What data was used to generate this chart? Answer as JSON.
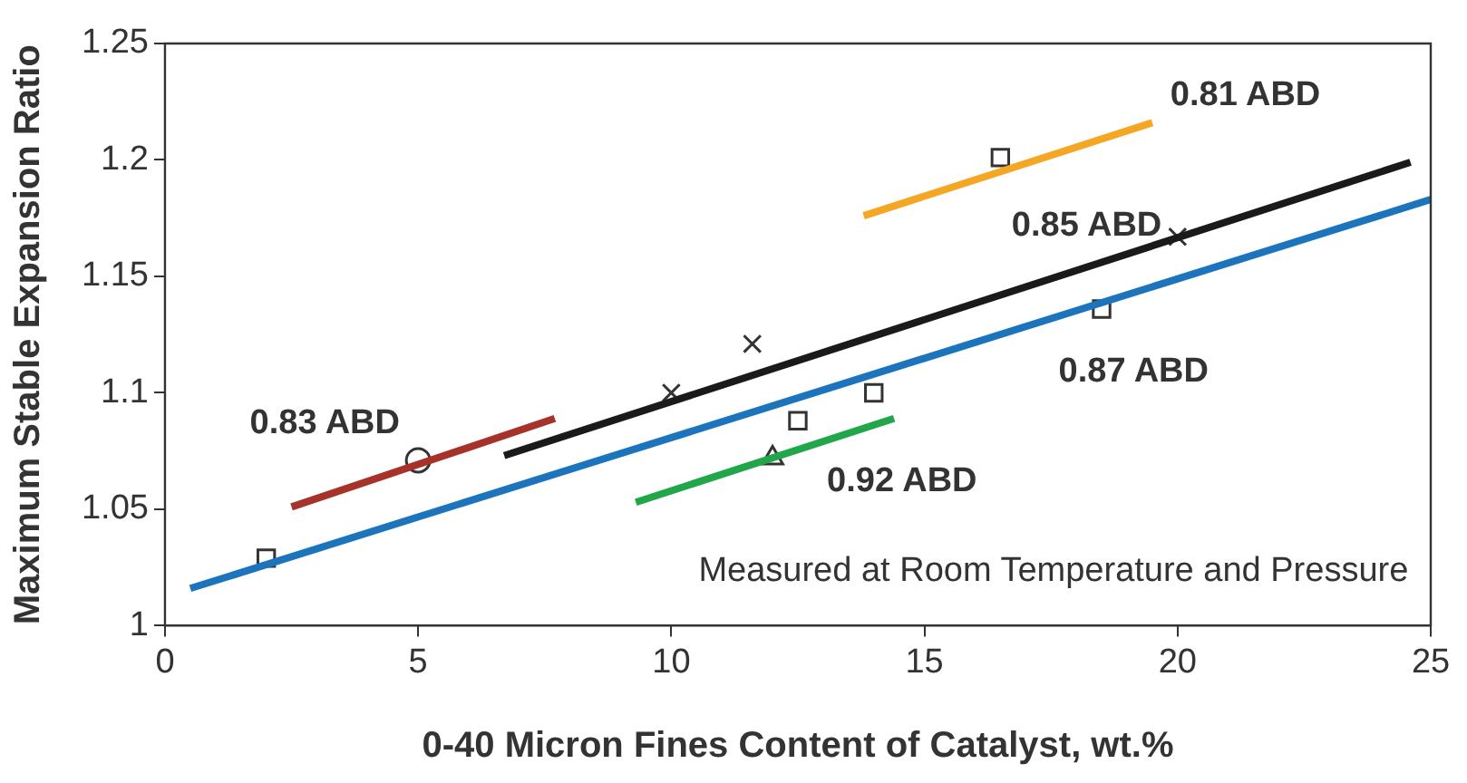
{
  "chart_data": {
    "type": "line",
    "xlabel": "0-40 Micron Fines Content of Catalyst, wt.%",
    "ylabel": "Maximum Stable Expansion Ratio",
    "xlim": [
      0,
      25
    ],
    "xticks": [
      0,
      5,
      10,
      15,
      20,
      25
    ],
    "ylim": [
      1,
      1.25
    ],
    "yticks": [
      1,
      1.05,
      1.1,
      1.15,
      1.2,
      1.25
    ],
    "grid": false,
    "legend": false,
    "series": [
      {
        "name": "0.87 ABD",
        "color": "#1c75bc",
        "x": [
          0.5,
          25
        ],
        "values": [
          1.016,
          1.183
        ]
      },
      {
        "name": "0.85 ABD",
        "color": "#1a1a1a",
        "x": [
          6.7,
          24.6
        ],
        "values": [
          1.073,
          1.199
        ]
      },
      {
        "name": "0.83 ABD",
        "color": "#a6322a",
        "x": [
          2.5,
          7.7
        ],
        "values": [
          1.051,
          1.089
        ]
      },
      {
        "name": "0.92 ABD",
        "color": "#21a64a",
        "x": [
          9.3,
          14.4
        ],
        "values": [
          1.053,
          1.089
        ]
      },
      {
        "name": "0.81 ABD",
        "color": "#f5a623",
        "x": [
          13.8,
          19.5
        ],
        "values": [
          1.176,
          1.216
        ]
      },
      {
        "type": "scatter",
        "marker": "square",
        "color": "#333333",
        "x": [
          2,
          12.5,
          14,
          16.5,
          18.5
        ],
        "values": [
          1.029,
          1.088,
          1.1,
          1.201,
          1.136
        ]
      },
      {
        "type": "scatter",
        "marker": "circle",
        "color": "#333333",
        "x": [
          5
        ],
        "values": [
          1.071
        ]
      },
      {
        "type": "scatter",
        "marker": "cross",
        "color": "#333333",
        "x": [
          10,
          11.6,
          20
        ],
        "values": [
          1.1,
          1.121,
          1.167
        ]
      },
      {
        "type": "scatter",
        "marker": "triangle",
        "color": "#333333",
        "x": [
          12
        ],
        "values": [
          1.072
        ]
      }
    ],
    "annotations": [
      "Measured at Room Temperature and Pressure"
    ]
  }
}
